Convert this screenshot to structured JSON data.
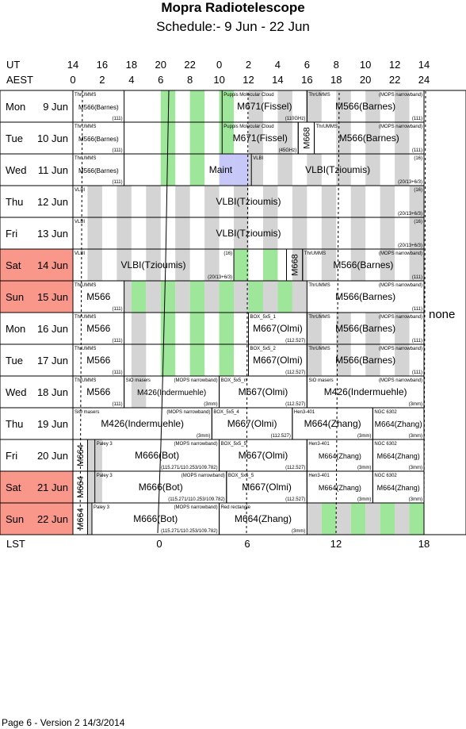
{
  "title": "Mopra Radiotelescope",
  "subtitle": "Schedule:- 9 Jun - 22 Jun",
  "axis": {
    "ut_label": "UT",
    "aest_label": "AEST",
    "lst_label": "LST",
    "ut_ticks": [
      "14",
      "16",
      "18",
      "20",
      "22",
      "0",
      "2",
      "4",
      "6",
      "8",
      "10",
      "12",
      "14"
    ],
    "aest_ticks": [
      "0",
      "2",
      "4",
      "6",
      "8",
      "10",
      "12",
      "14",
      "16",
      "18",
      "20",
      "22",
      "24"
    ],
    "lst_ticks": [
      "0",
      "6",
      "12",
      "18"
    ]
  },
  "side_note": "none",
  "footer": "Page 6 - Version 2  14/3/2014",
  "colors": {
    "weekend": "#f8978a",
    "grey": "#d4d4d4",
    "green": "#9ee69a",
    "maint": "#c8c8f8"
  },
  "days": [
    {
      "dow": "Mon",
      "date": "9 Jun",
      "weekend": false,
      "bars": [
        {
          "a": 6,
          "b": 7,
          "c": "green"
        },
        {
          "a": 8,
          "b": 9,
          "c": "green"
        },
        {
          "a": 10,
          "b": 11,
          "c": "green"
        },
        {
          "a": 12,
          "b": 13,
          "c": "grey"
        },
        {
          "a": 14,
          "b": 15,
          "c": "grey"
        },
        {
          "a": 16,
          "b": 17,
          "c": "grey"
        },
        {
          "a": 18,
          "b": 19,
          "c": "grey"
        },
        {
          "a": 20,
          "b": 21,
          "c": "grey"
        },
        {
          "a": 22,
          "b": 23,
          "c": "grey"
        }
      ],
      "blocks": [
        {
          "a": 0,
          "b": 3.5,
          "tl": "ThrUMMS",
          "mid": "M566(Barnes)",
          "br": "(111)",
          "fs": 8
        },
        {
          "a": 10.2,
          "b": 16,
          "tl": "Puppis Molecular Cloud",
          "mid": "M671(Fissel)",
          "br": "(110GHz)",
          "fs": 12
        },
        {
          "a": 16,
          "b": 24,
          "tl": "ThrUMMS",
          "tr": "(MOPS narrowband)",
          "mid": "M566(Barnes)",
          "br": "(111)",
          "fs": 12
        }
      ]
    },
    {
      "dow": "Tue",
      "date": "10 Jun",
      "weekend": false,
      "bars": [
        {
          "a": 6,
          "b": 7,
          "c": "green"
        },
        {
          "a": 8,
          "b": 9,
          "c": "green"
        },
        {
          "a": 10,
          "b": 11,
          "c": "green"
        },
        {
          "a": 12,
          "b": 13,
          "c": "grey"
        },
        {
          "a": 14,
          "b": 15,
          "c": "grey"
        },
        {
          "a": 18,
          "b": 19,
          "c": "grey"
        },
        {
          "a": 20,
          "b": 21,
          "c": "grey"
        },
        {
          "a": 22,
          "b": 23,
          "c": "grey"
        }
      ],
      "blocks": [
        {
          "a": 0,
          "b": 3.5,
          "tl": "ThrUMMS",
          "mid": "M566(Barnes)",
          "br": "(111)",
          "fs": 8
        },
        {
          "a": 10.2,
          "b": 15.4,
          "tl": "Puppis Molecular Cloud",
          "mid": "M671(Fissel)",
          "br": "(45GHz)",
          "fs": 12
        },
        {
          "a": 15.4,
          "b": 16.5,
          "vert": "M668",
          "fs": 11
        },
        {
          "a": 16.5,
          "b": 24,
          "tl": "ThrUMMS",
          "tr": "(MOPS narrowband)",
          "mid": "M566(Barnes)",
          "br": "(111)",
          "fs": 12
        }
      ]
    },
    {
      "dow": "Wed",
      "date": "11 Jun",
      "weekend": false,
      "bars": [
        {
          "a": 6,
          "b": 7,
          "c": "green"
        },
        {
          "a": 8,
          "b": 9,
          "c": "green"
        },
        {
          "a": 10,
          "b": 11,
          "c": "maint"
        },
        {
          "a": 11,
          "b": 12,
          "c": "maint"
        },
        {
          "a": 12,
          "b": 13,
          "c": "grey"
        },
        {
          "a": 14,
          "b": 15,
          "c": "grey"
        },
        {
          "a": 16,
          "b": 17,
          "c": "grey"
        },
        {
          "a": 18,
          "b": 19,
          "c": "grey"
        },
        {
          "a": 20,
          "b": 21,
          "c": "grey"
        },
        {
          "a": 22,
          "b": 23,
          "c": "grey"
        }
      ],
      "blocks": [
        {
          "a": 0,
          "b": 3.5,
          "tl": "ThrUMMS",
          "mid": "M566(Barnes)",
          "br": "(111)",
          "fs": 8
        },
        {
          "a": 8,
          "b": 12.2,
          "mid": "Maint",
          "fs": 12,
          "open": true
        },
        {
          "a": 12.2,
          "b": 24,
          "tl": "VLBI",
          "tr": "(16)",
          "mid": "VLBI(Tzioumis)",
          "br": "(20/13+6/3)",
          "fs": 12
        }
      ]
    },
    {
      "dow": "Thu",
      "date": "12 Jun",
      "weekend": false,
      "bars": [
        {
          "a": 1,
          "b": 2,
          "c": "grey"
        },
        {
          "a": 3,
          "b": 4,
          "c": "grey"
        },
        {
          "a": 5,
          "b": 6,
          "c": "grey"
        },
        {
          "a": 7,
          "b": 8,
          "c": "grey"
        },
        {
          "a": 9,
          "b": 10,
          "c": "grey"
        },
        {
          "a": 11,
          "b": 12,
          "c": "grey"
        },
        {
          "a": 13,
          "b": 14,
          "c": "grey"
        },
        {
          "a": 15,
          "b": 16,
          "c": "grey"
        },
        {
          "a": 17,
          "b": 18,
          "c": "grey"
        },
        {
          "a": 19,
          "b": 20,
          "c": "grey"
        },
        {
          "a": 21,
          "b": 22,
          "c": "grey"
        },
        {
          "a": 23,
          "b": 24,
          "c": "grey"
        }
      ],
      "blocks": [
        {
          "a": 0,
          "b": 24,
          "tl": "VLBI",
          "tr": "(16)",
          "mid": "VLBI(Tzioumis)",
          "br": "(20/13+6/3)",
          "fs": 12
        }
      ]
    },
    {
      "dow": "Fri",
      "date": "13 Jun",
      "weekend": false,
      "bars": [
        {
          "a": 1,
          "b": 2,
          "c": "grey"
        },
        {
          "a": 3,
          "b": 4,
          "c": "grey"
        },
        {
          "a": 5,
          "b": 6,
          "c": "grey"
        },
        {
          "a": 7,
          "b": 8,
          "c": "grey"
        },
        {
          "a": 9,
          "b": 10,
          "c": "grey"
        },
        {
          "a": 11,
          "b": 12,
          "c": "grey"
        },
        {
          "a": 13,
          "b": 14,
          "c": "grey"
        },
        {
          "a": 15,
          "b": 16,
          "c": "grey"
        },
        {
          "a": 17,
          "b": 18,
          "c": "grey"
        },
        {
          "a": 19,
          "b": 20,
          "c": "grey"
        },
        {
          "a": 21,
          "b": 22,
          "c": "grey"
        },
        {
          "a": 23,
          "b": 24,
          "c": "grey"
        }
      ],
      "blocks": [
        {
          "a": 0,
          "b": 24,
          "tl": "VLBI",
          "tr": "(16)",
          "mid": "VLBI(Tzioumis)",
          "br": "(20/13+6/3)",
          "fs": 12
        }
      ]
    },
    {
      "dow": "Sat",
      "date": "14 Jun",
      "weekend": true,
      "bars": [
        {
          "a": 1,
          "b": 2,
          "c": "grey"
        },
        {
          "a": 3,
          "b": 4,
          "c": "grey"
        },
        {
          "a": 5,
          "b": 6,
          "c": "grey"
        },
        {
          "a": 7,
          "b": 8,
          "c": "grey"
        },
        {
          "a": 9,
          "b": 10,
          "c": "grey"
        },
        {
          "a": 11,
          "b": 12,
          "c": "green"
        },
        {
          "a": 13,
          "b": 14,
          "c": "green"
        },
        {
          "a": 15,
          "b": 16,
          "c": "grey"
        },
        {
          "a": 17,
          "b": 18,
          "c": "grey"
        },
        {
          "a": 19,
          "b": 20,
          "c": "grey"
        },
        {
          "a": 21,
          "b": 22,
          "c": "grey"
        },
        {
          "a": 23,
          "b": 24,
          "c": "grey"
        }
      ],
      "blocks": [
        {
          "a": 0,
          "b": 11,
          "tl": "VLBI",
          "tr": "(16)",
          "mid": "VLBI(Tzioumis)",
          "br": "(20/13+6/3)",
          "fs": 12
        },
        {
          "a": 14.6,
          "b": 15.7,
          "vert": "M668",
          "fs": 11
        },
        {
          "a": 15.7,
          "b": 24,
          "tl": "ThrUMMS",
          "tr": "(MOPS narrowband)",
          "mid": "M566(Barnes)",
          "br": "(111)",
          "fs": 12
        }
      ]
    },
    {
      "dow": "Sun",
      "date": "15 Jun",
      "weekend": true,
      "bars": [
        {
          "a": 3.5,
          "b": 4,
          "c": "grey"
        },
        {
          "a": 4,
          "b": 5,
          "c": "green"
        },
        {
          "a": 5,
          "b": 6,
          "c": "grey"
        },
        {
          "a": 6,
          "b": 7,
          "c": "green"
        },
        {
          "a": 7,
          "b": 8,
          "c": "grey"
        },
        {
          "a": 8,
          "b": 9,
          "c": "green"
        },
        {
          "a": 9,
          "b": 10,
          "c": "grey"
        },
        {
          "a": 10,
          "b": 11,
          "c": "green"
        },
        {
          "a": 11,
          "b": 12,
          "c": "grey"
        },
        {
          "a": 12,
          "b": 13,
          "c": "green"
        },
        {
          "a": 13,
          "b": 14,
          "c": "grey"
        },
        {
          "a": 14,
          "b": 15,
          "c": "green"
        },
        {
          "a": 15,
          "b": 16,
          "c": "grey"
        }
      ],
      "blocks": [
        {
          "a": 0,
          "b": 3.5,
          "tl": "ThrUMMS",
          "mid": "M566",
          "br": "(111)",
          "fs": 12
        },
        {
          "a": 16,
          "b": 24,
          "tl": "ThrUMMS",
          "tr": "(MOPS narrowband)",
          "mid": "M566(Barnes)",
          "br": "(111)",
          "fs": 12
        }
      ]
    },
    {
      "dow": "Mon",
      "date": "16 Jun",
      "weekend": false,
      "bars": [
        {
          "a": 4,
          "b": 5,
          "c": "grey"
        },
        {
          "a": 6,
          "b": 7,
          "c": "green"
        },
        {
          "a": 8,
          "b": 9,
          "c": "green"
        },
        {
          "a": 10,
          "b": 11,
          "c": "green"
        },
        {
          "a": 16,
          "b": 17,
          "c": "grey"
        },
        {
          "a": 18,
          "b": 19,
          "c": "grey"
        },
        {
          "a": 20,
          "b": 21,
          "c": "grey"
        },
        {
          "a": 22,
          "b": 23,
          "c": "grey"
        }
      ],
      "blocks": [
        {
          "a": 0,
          "b": 3.5,
          "tl": "ThrUMMS",
          "mid": "M566",
          "br": "(111)",
          "fs": 12
        },
        {
          "a": 12,
          "b": 16,
          "tl": "BOX_5x5_1",
          "mid": "M667(Olmi)",
          "br": "(112.527)",
          "fs": 12
        },
        {
          "a": 16,
          "b": 24,
          "tl": "ThrUMMS",
          "tr": "(MOPS narrowband)",
          "mid": "M566(Barnes)",
          "br": "(111)",
          "fs": 12
        }
      ]
    },
    {
      "dow": "Tue",
      "date": "17 Jun",
      "weekend": false,
      "bars": [
        {
          "a": 4,
          "b": 5,
          "c": "grey"
        },
        {
          "a": 6,
          "b": 7,
          "c": "green"
        },
        {
          "a": 8,
          "b": 9,
          "c": "green"
        },
        {
          "a": 10,
          "b": 11,
          "c": "green"
        },
        {
          "a": 16,
          "b": 17,
          "c": "grey"
        },
        {
          "a": 18,
          "b": 19,
          "c": "grey"
        },
        {
          "a": 20,
          "b": 21,
          "c": "grey"
        },
        {
          "a": 22,
          "b": 23,
          "c": "grey"
        }
      ],
      "blocks": [
        {
          "a": 0,
          "b": 3.5,
          "tl": "ThrUMMS",
          "mid": "M566",
          "br": "(111)",
          "fs": 12
        },
        {
          "a": 12,
          "b": 16,
          "tl": "BOX_5x5_2",
          "mid": "M667(Olmi)",
          "br": "(112.527)",
          "fs": 12
        },
        {
          "a": 16,
          "b": 24,
          "tl": "ThrUMMS",
          "tr": "(MOPS narrowband)",
          "mid": "M566(Barnes)",
          "br": "(111)",
          "fs": 12
        }
      ]
    },
    {
      "dow": "Wed",
      "date": "18 Jun",
      "weekend": false,
      "bars": [
        {
          "a": 4,
          "b": 5,
          "c": "grey"
        }
      ],
      "blocks": [
        {
          "a": 0,
          "b": 3.5,
          "tl": "ThrUMMS",
          "mid": "M566",
          "br": "(111)",
          "fs": 12
        },
        {
          "a": 3.5,
          "b": 10,
          "tl": "SiO masers",
          "tr": "(MOPS narrowband)",
          "mid": "M426(Indermuehle)",
          "br": "(3mm)",
          "fs": 10
        },
        {
          "a": 10,
          "b": 16,
          "tl": "BOX_5x5_rr",
          "mid": "M667(Olmi)",
          "br": "(112.527)",
          "fs": 12
        },
        {
          "a": 16,
          "b": 24,
          "tl": "SiO masers",
          "tr": "(MOPS narrowband)",
          "mid": "M426(Indermuehle)",
          "br": "(3mm)",
          "fs": 12
        }
      ]
    },
    {
      "dow": "Thu",
      "date": "19 Jun",
      "weekend": false,
      "bars": [],
      "blocks": [
        {
          "a": 0,
          "b": 9.5,
          "tl": "SiO masers",
          "tr": "(MOPS narrowband)",
          "mid": "M426(Indermuehle)",
          "br": "(3mm)",
          "fs": 12
        },
        {
          "a": 9.5,
          "b": 15,
          "tl": "BOX_5x5_4",
          "mid": "M667(Olmi)",
          "br": "(112.527)",
          "fs": 12
        },
        {
          "a": 15,
          "b": 20.5,
          "tl": "Hen3-401",
          "mid": "M664(Zhang)",
          "br": "(3mm)",
          "fs": 12
        },
        {
          "a": 20.5,
          "b": 24,
          "tl": "NGC 6302",
          "mid": "M664(Zhang)",
          "br": "(3mm)",
          "fs": 10
        }
      ]
    },
    {
      "dow": "Fri",
      "date": "20 Jun",
      "weekend": false,
      "bars": [
        {
          "a": 1,
          "b": 2,
          "c": "grey"
        }
      ],
      "blocks": [
        {
          "a": 0,
          "b": 1,
          "vert": "M664",
          "fs": 11
        },
        {
          "a": 1.5,
          "b": 10,
          "tl": "Paley 3",
          "tr": "(MOPS narrowband)",
          "mid": "M666(Bot)",
          "br": "(115.271/110.253/109.782)",
          "fs": 12
        },
        {
          "a": 10,
          "b": 16,
          "tl": "BOX_5x5_5",
          "mid": "M667(Olmi)",
          "br": "(112.527)",
          "fs": 12
        },
        {
          "a": 16,
          "b": 20.5,
          "tl": "Hen3-401",
          "mid": "M664(Zhang)",
          "br": "(3mm)",
          "fs": 9
        },
        {
          "a": 20.5,
          "b": 24,
          "tl": "NGC 6302",
          "mid": "M664(Zhang)",
          "br": "(3mm)",
          "fs": 9
        }
      ]
    },
    {
      "dow": "Sat",
      "date": "21 Jun",
      "weekend": true,
      "bars": [
        {
          "a": 1,
          "b": 2,
          "c": "grey"
        }
      ],
      "blocks": [
        {
          "a": 0,
          "b": 1,
          "vert": "M664",
          "fs": 11
        },
        {
          "a": 1.5,
          "b": 10.5,
          "tl": "Paley 3",
          "tr": "(MOPS narrowband)",
          "mid": "M666(Bot)",
          "br": "(115.271/110.253/109.782)",
          "fs": 12
        },
        {
          "a": 10.5,
          "b": 16,
          "tl": "BOX_5x5_5",
          "mid": "M667(Olmi)",
          "br": "(112.527)",
          "fs": 12
        },
        {
          "a": 16,
          "b": 20.5,
          "tl": "Hen3-401",
          "mid": "M664(Zhang)",
          "br": "(3mm)",
          "fs": 9
        },
        {
          "a": 20.5,
          "b": 24,
          "tl": "NGC 6302",
          "mid": "M664(Zhang)",
          "br": "(3mm)",
          "fs": 9
        }
      ]
    },
    {
      "dow": "Sun",
      "date": "22 Jun",
      "weekend": true,
      "bars": [
        {
          "a": 1,
          "b": 1.3,
          "c": "grey"
        },
        {
          "a": 16,
          "b": 17,
          "c": "grey"
        },
        {
          "a": 17,
          "b": 18,
          "c": "green"
        },
        {
          "a": 18,
          "b": 19,
          "c": "grey"
        },
        {
          "a": 19,
          "b": 20,
          "c": "green"
        },
        {
          "a": 20,
          "b": 21,
          "c": "grey"
        },
        {
          "a": 21,
          "b": 22,
          "c": "green"
        },
        {
          "a": 22,
          "b": 23,
          "c": "grey"
        },
        {
          "a": 23,
          "b": 24,
          "c": "green"
        }
      ],
      "blocks": [
        {
          "a": 0,
          "b": 1,
          "vert": "M664",
          "fs": 11
        },
        {
          "a": 1.3,
          "b": 10,
          "tl": "Paley 3",
          "tr": "(MOPS narrowband)",
          "mid": "M666(Bot)",
          "br": "(115.271/110.253/109.782)",
          "fs": 12
        },
        {
          "a": 10,
          "b": 16,
          "tl": "Red rectangle",
          "mid": "M664(Zhang)",
          "br": "(3mm)",
          "fs": 12
        }
      ]
    }
  ]
}
